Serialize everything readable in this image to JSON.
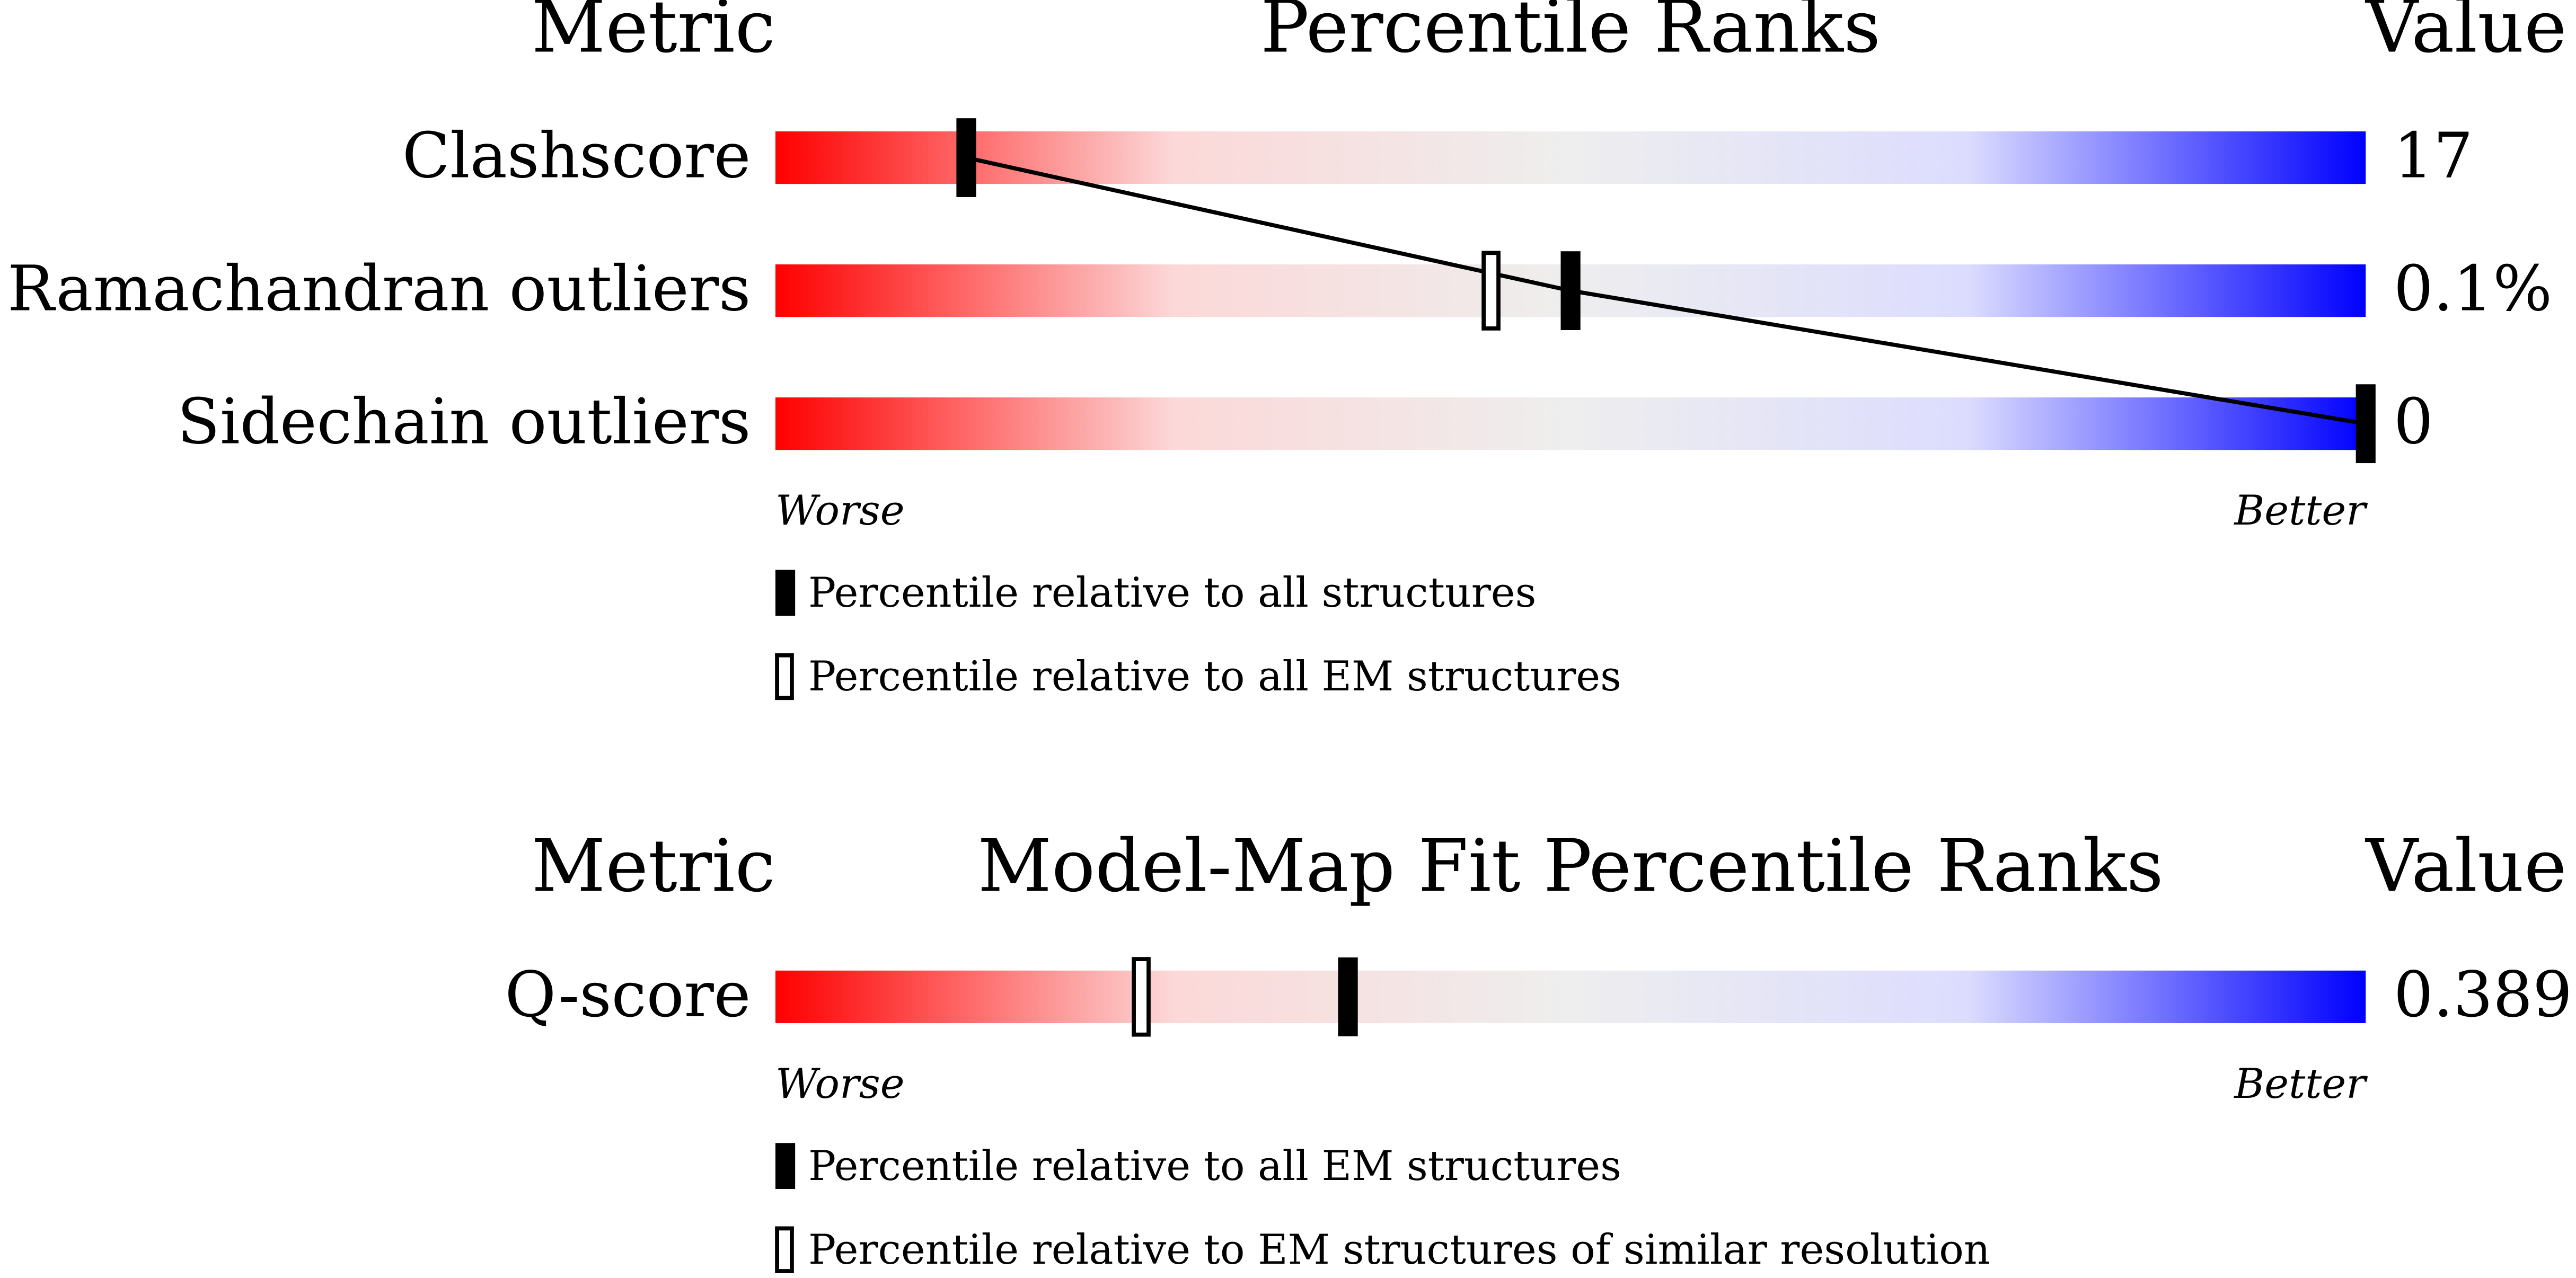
{
  "chart_data": [
    {
      "type": "percentile-slider",
      "title": "Percentile Ranks",
      "metric_header": "Metric",
      "value_header": "Value",
      "xlim": [
        0,
        100
      ],
      "worse_label": "Worse",
      "better_label": "Better",
      "categories": [
        "Clashscore",
        "Ramachandran outliers",
        "Sidechain outliers"
      ],
      "metric_values": [
        "17",
        "0.1%",
        "0"
      ],
      "series": [
        {
          "name": "Percentile relative to all structures",
          "style": "filled",
          "color": "#000000",
          "values": [
            12,
            50,
            100
          ]
        },
        {
          "name": "Percentile relative to all EM structures",
          "style": "open",
          "color": "#000000",
          "values": [
            null,
            45,
            null
          ]
        }
      ],
      "connect_first_series": true,
      "gradient": [
        "#ff0000",
        "#fcd8d8",
        "#eeeeee",
        "#dcdcff",
        "#0000ff"
      ]
    },
    {
      "type": "percentile-slider",
      "title": "Model-Map Fit Percentile Ranks",
      "metric_header": "Metric",
      "value_header": "Value",
      "xlim": [
        0,
        100
      ],
      "worse_label": "Worse",
      "better_label": "Better",
      "categories": [
        "Q-score"
      ],
      "metric_values": [
        "0.389"
      ],
      "series": [
        {
          "name": "Percentile relative to all EM structures",
          "style": "filled",
          "color": "#000000",
          "values": [
            36
          ]
        },
        {
          "name": "Percentile relative to EM structures of similar resolution",
          "style": "open",
          "color": "#000000",
          "values": [
            23
          ]
        }
      ],
      "connect_first_series": false,
      "gradient": [
        "#ff0000",
        "#fcd8d8",
        "#eeeeee",
        "#dcdcff",
        "#0000ff"
      ]
    }
  ]
}
